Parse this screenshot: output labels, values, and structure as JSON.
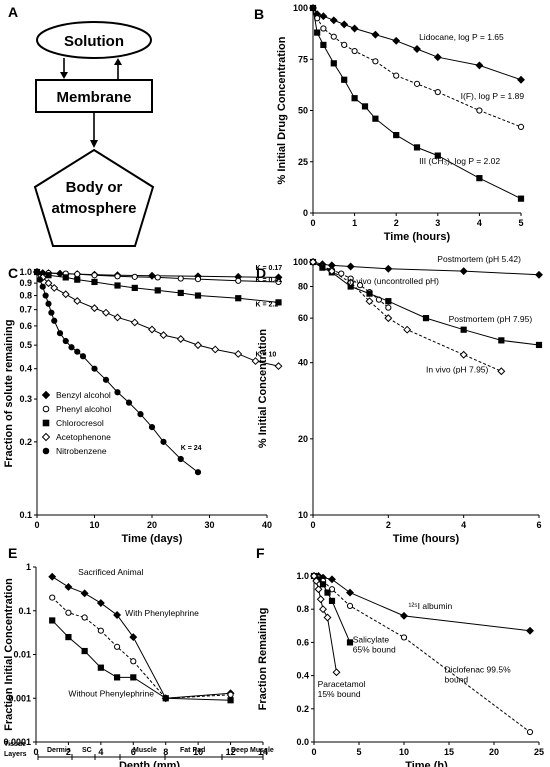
{
  "panel_labels": [
    "A",
    "B",
    "C",
    "D",
    "E",
    "F"
  ],
  "diagram": {
    "nodes": [
      "Solution",
      "Membrane",
      "Body or",
      "atmosphere"
    ]
  },
  "chart_data": [
    {
      "id": "B",
      "type": "line",
      "xlabel": "Time (hours)",
      "ylabel": "% Initial Drug Concentration",
      "xlim": [
        0,
        5
      ],
      "ylim": [
        0,
        100
      ],
      "xticks": [
        "0",
        "1",
        "2",
        "3",
        "4",
        "5"
      ],
      "yticks": [
        "0",
        "25",
        "50",
        "75",
        "100"
      ],
      "series": [
        {
          "name": "Lidocane, log P = 1.65",
          "marker": "diamond",
          "dash": false,
          "x": [
            0,
            0.1,
            0.25,
            0.5,
            0.75,
            1,
            1.5,
            2,
            2.5,
            3,
            4,
            5
          ],
          "y": [
            100,
            97,
            96,
            94,
            92,
            90,
            87,
            84,
            80,
            76,
            72,
            65
          ]
        },
        {
          "name": "I(F), log P = 1.89",
          "marker": "circle",
          "dash": true,
          "x": [
            0,
            0.1,
            0.25,
            0.5,
            0.75,
            1,
            1.5,
            2,
            2.5,
            3,
            4,
            5
          ],
          "y": [
            100,
            95,
            90,
            86,
            82,
            79,
            74,
            67,
            63,
            59,
            50,
            42
          ]
        },
        {
          "name": "III (CH₃), log P = 2.02",
          "marker": "square",
          "dash": false,
          "x": [
            0,
            0.1,
            0.25,
            0.5,
            0.75,
            1,
            1.25,
            1.5,
            2,
            2.5,
            3,
            4,
            5
          ],
          "y": [
            100,
            88,
            82,
            73,
            65,
            56,
            52,
            46,
            38,
            32,
            28,
            17,
            7
          ]
        }
      ]
    },
    {
      "id": "C",
      "type": "line",
      "log_y": true,
      "xlabel": "Time (days)",
      "ylabel": "Fraction of solute remaining",
      "xlim": [
        0,
        40
      ],
      "ylim": [
        0.1,
        1
      ],
      "xticks": [
        "0",
        "10",
        "20",
        "30",
        "40"
      ],
      "yticks": [
        {
          "v": 1,
          "t": "1.0"
        },
        {
          "v": 0.9,
          "t": "0.9"
        },
        {
          "v": 0.8,
          "t": "0.8"
        },
        {
          "v": 0.7,
          "t": "0.7"
        },
        {
          "v": 0.6,
          "t": "0.6"
        },
        {
          "v": 0.5,
          "t": "0.5"
        },
        {
          "v": 0.4,
          "t": "0.4"
        },
        {
          "v": 0.3,
          "t": "0.3"
        },
        {
          "v": 0.2,
          "t": "0.2"
        },
        {
          "v": 0.1,
          "t": "0.1"
        }
      ],
      "k_labels": [
        {
          "t": "K = 0.17",
          "x": 38,
          "y": 1.02
        },
        {
          "t": "K = 0.41",
          "x": 38,
          "y": 0.91
        },
        {
          "t": "K = 2.2",
          "x": 38,
          "y": 0.72
        },
        {
          "t": "K = 10",
          "x": 38,
          "y": 0.45
        },
        {
          "t": "K = 24",
          "x": 25,
          "y": 0.185
        }
      ],
      "series": [
        {
          "name": "Benzyl alcohol",
          "marker": "diamond",
          "fill": true,
          "x": [
            0,
            1,
            2,
            4,
            7,
            10,
            14,
            20,
            28,
            35,
            42
          ],
          "y": [
            1,
            0.99,
            0.99,
            0.985,
            0.98,
            0.975,
            0.97,
            0.965,
            0.96,
            0.955,
            0.95
          ]
        },
        {
          "name": "Phenyl alcohol",
          "marker": "circle",
          "fill": false,
          "x": [
            0,
            2,
            5,
            7,
            10,
            14,
            17,
            21,
            25,
            28,
            35,
            42
          ],
          "y": [
            1,
            0.99,
            0.985,
            0.98,
            0.97,
            0.96,
            0.955,
            0.95,
            0.94,
            0.935,
            0.92,
            0.91
          ]
        },
        {
          "name": "Chlorocresol",
          "marker": "square",
          "fill": true,
          "x": [
            0,
            2,
            5,
            7,
            10,
            14,
            17,
            21,
            25,
            28,
            35,
            42
          ],
          "y": [
            1,
            0.97,
            0.95,
            0.93,
            0.91,
            0.88,
            0.86,
            0.84,
            0.82,
            0.8,
            0.78,
            0.75
          ]
        },
        {
          "name": "Acetophenone",
          "marker": "diamond",
          "fill": false,
          "x": [
            0,
            1,
            2,
            3,
            5,
            7,
            10,
            12,
            14,
            17,
            20,
            22,
            25,
            28,
            31,
            35,
            38,
            42
          ],
          "y": [
            1,
            0.95,
            0.9,
            0.86,
            0.81,
            0.76,
            0.71,
            0.68,
            0.65,
            0.62,
            0.58,
            0.55,
            0.53,
            0.5,
            0.48,
            0.46,
            0.43,
            0.41
          ]
        },
        {
          "name": "Nitrobenzene",
          "marker": "circle",
          "fill": true,
          "x": [
            0,
            0.5,
            1,
            1.5,
            2,
            2.5,
            3,
            4,
            5,
            6,
            7,
            8,
            10,
            12,
            14,
            16,
            18,
            20,
            22,
            25,
            28
          ],
          "y": [
            1,
            0.93,
            0.87,
            0.8,
            0.74,
            0.68,
            0.63,
            0.56,
            0.52,
            0.49,
            0.47,
            0.45,
            0.4,
            0.36,
            0.32,
            0.29,
            0.26,
            0.23,
            0.2,
            0.17,
            0.15
          ]
        }
      ]
    },
    {
      "id": "D",
      "type": "line",
      "log_y": true,
      "xlabel": "Time (hours)",
      "ylabel": "% Initial Concentration",
      "xlim": [
        0,
        6
      ],
      "ylim": [
        10,
        100
      ],
      "xticks": [
        "0",
        "2",
        "4",
        "6"
      ],
      "yticks": [
        {
          "v": 100,
          "t": "100"
        },
        {
          "v": 80,
          "t": "80"
        },
        {
          "v": 60,
          "t": "60"
        },
        {
          "v": 40,
          "t": "40"
        },
        {
          "v": 20,
          "t": "20"
        },
        {
          "v": 10,
          "t": "10"
        }
      ],
      "series": [
        {
          "name": "Postmortem (pH 5.42)",
          "marker": "diamond",
          "fill": true,
          "dash": false,
          "x": [
            0,
            0.25,
            0.5,
            1,
            2,
            4,
            6
          ],
          "y": [
            100,
            98,
            97,
            96,
            94,
            92,
            89
          ]
        },
        {
          "name": "In vivo (uncontrolled pH)",
          "marker": "circle",
          "fill": false,
          "dash": true,
          "x": [
            0,
            0.25,
            0.5,
            0.75,
            1,
            1.25,
            1.5,
            1.75,
            2
          ],
          "y": [
            100,
            96,
            93,
            90,
            86,
            81,
            76,
            71,
            66
          ]
        },
        {
          "name": "Postmortem (pH 7.95)",
          "marker": "square",
          "fill": true,
          "dash": false,
          "x": [
            0,
            0.25,
            0.5,
            1,
            1.5,
            2,
            3,
            4,
            5,
            6
          ],
          "y": [
            100,
            95,
            91,
            80,
            75,
            70,
            60,
            54,
            49,
            47
          ]
        },
        {
          "name": "In vivo (pH 7.95)",
          "marker": "diamond",
          "fill": false,
          "dash": true,
          "x": [
            0,
            0.5,
            1,
            1.5,
            2,
            2.5,
            4,
            5
          ],
          "y": [
            100,
            92,
            83,
            70,
            60,
            54,
            43,
            37
          ]
        }
      ]
    },
    {
      "id": "E",
      "type": "line",
      "log_y": true,
      "xlabel": "Depth (mm)",
      "ylabel": "Fraction Initial Concentration",
      "xlim": [
        0,
        14
      ],
      "ylim": [
        0.0001,
        1
      ],
      "xticks": [
        "0",
        "2",
        "4",
        "6",
        "8",
        "10",
        "12",
        "14"
      ],
      "yticks": [
        {
          "v": 1,
          "t": "1"
        },
        {
          "v": 0.1,
          "t": "0.1"
        },
        {
          "v": 0.01,
          "t": "0.01"
        },
        {
          "v": 0.001,
          "t": "0.001"
        },
        {
          "v": 0.0001,
          "t": "0.0001"
        }
      ],
      "series": [
        {
          "name": "Sacrificed Animal",
          "marker": "diamond",
          "fill": true,
          "dash": false,
          "x": [
            1,
            2,
            3,
            4,
            5,
            6,
            8,
            12
          ],
          "y": [
            0.6,
            0.35,
            0.25,
            0.15,
            0.08,
            0.025,
            0.001,
            0.0013
          ]
        },
        {
          "name": "With Phenylephrine",
          "marker": "circle",
          "fill": false,
          "dash": true,
          "x": [
            1,
            2,
            3,
            4,
            5,
            6,
            8,
            12
          ],
          "y": [
            0.2,
            0.09,
            0.07,
            0.035,
            0.015,
            0.007,
            0.001,
            0.0012
          ]
        },
        {
          "name": "Without Phenylephrine",
          "marker": "square",
          "fill": true,
          "dash": false,
          "x": [
            1,
            2,
            3,
            4,
            5,
            6,
            8,
            12
          ],
          "y": [
            0.06,
            0.025,
            0.012,
            0.005,
            0.003,
            0.003,
            0.001,
            0.0009
          ]
        }
      ],
      "tissue_label": [
        "Tissue",
        "Layers"
      ],
      "tissue_layers": [
        "Dermis",
        "SC",
        "Muscle",
        "Fat Pad",
        "Deep Muscle"
      ]
    },
    {
      "id": "F",
      "type": "line",
      "xlabel": "Time (h)",
      "ylabel": "Fraction Remaining",
      "xlim": [
        0,
        25
      ],
      "ylim": [
        0,
        1
      ],
      "xticks": [
        "0",
        "5",
        "10",
        "15",
        "20",
        "25"
      ],
      "yticks": [
        "0.0",
        "0.2",
        "0.4",
        "0.6",
        "0.8",
        "1.0"
      ],
      "series": [
        {
          "name": "¹²⁵I albumin",
          "marker": "diamond",
          "fill": true,
          "dash": false,
          "x": [
            0,
            0.5,
            1,
            2,
            4,
            10,
            24
          ],
          "y": [
            1,
            1,
            0.99,
            0.98,
            0.9,
            0.76,
            0.67
          ]
        },
        {
          "name": "Diclofenac 99.5% bound",
          "marker": "circle",
          "fill": false,
          "dash": true,
          "x": [
            0,
            0.5,
            1,
            2,
            4,
            10,
            24
          ],
          "y": [
            1,
            0.99,
            0.97,
            0.92,
            0.82,
            0.63,
            0.06
          ]
        },
        {
          "name": "Salicylate 65% bound",
          "marker": "square",
          "fill": true,
          "dash": false,
          "x": [
            0,
            0.5,
            1,
            1.5,
            2,
            4
          ],
          "y": [
            1,
            0.98,
            0.95,
            0.9,
            0.85,
            0.6
          ]
        },
        {
          "name": "Paracetamol 15% bound",
          "marker": "diamond",
          "fill": false,
          "dash": false,
          "x": [
            0,
            0.25,
            0.5,
            0.75,
            1,
            1.5,
            2.5
          ],
          "y": [
            1,
            0.97,
            0.92,
            0.86,
            0.8,
            0.75,
            0.42
          ]
        }
      ],
      "labels": [
        {
          "lines": [
            "¹²⁵I albumin"
          ],
          "x": 10.5,
          "y": 0.8
        },
        {
          "lines": [
            "Salicylate",
            "65% bound"
          ],
          "x": 4.3,
          "y": 0.6
        },
        {
          "lines": [
            "Paracetamol",
            "15% bound"
          ],
          "x": 0.4,
          "y": 0.33
        },
        {
          "lines": [
            "Diclofenac 99.5%",
            "bound"
          ],
          "x": 14.5,
          "y": 0.42
        }
      ]
    }
  ]
}
